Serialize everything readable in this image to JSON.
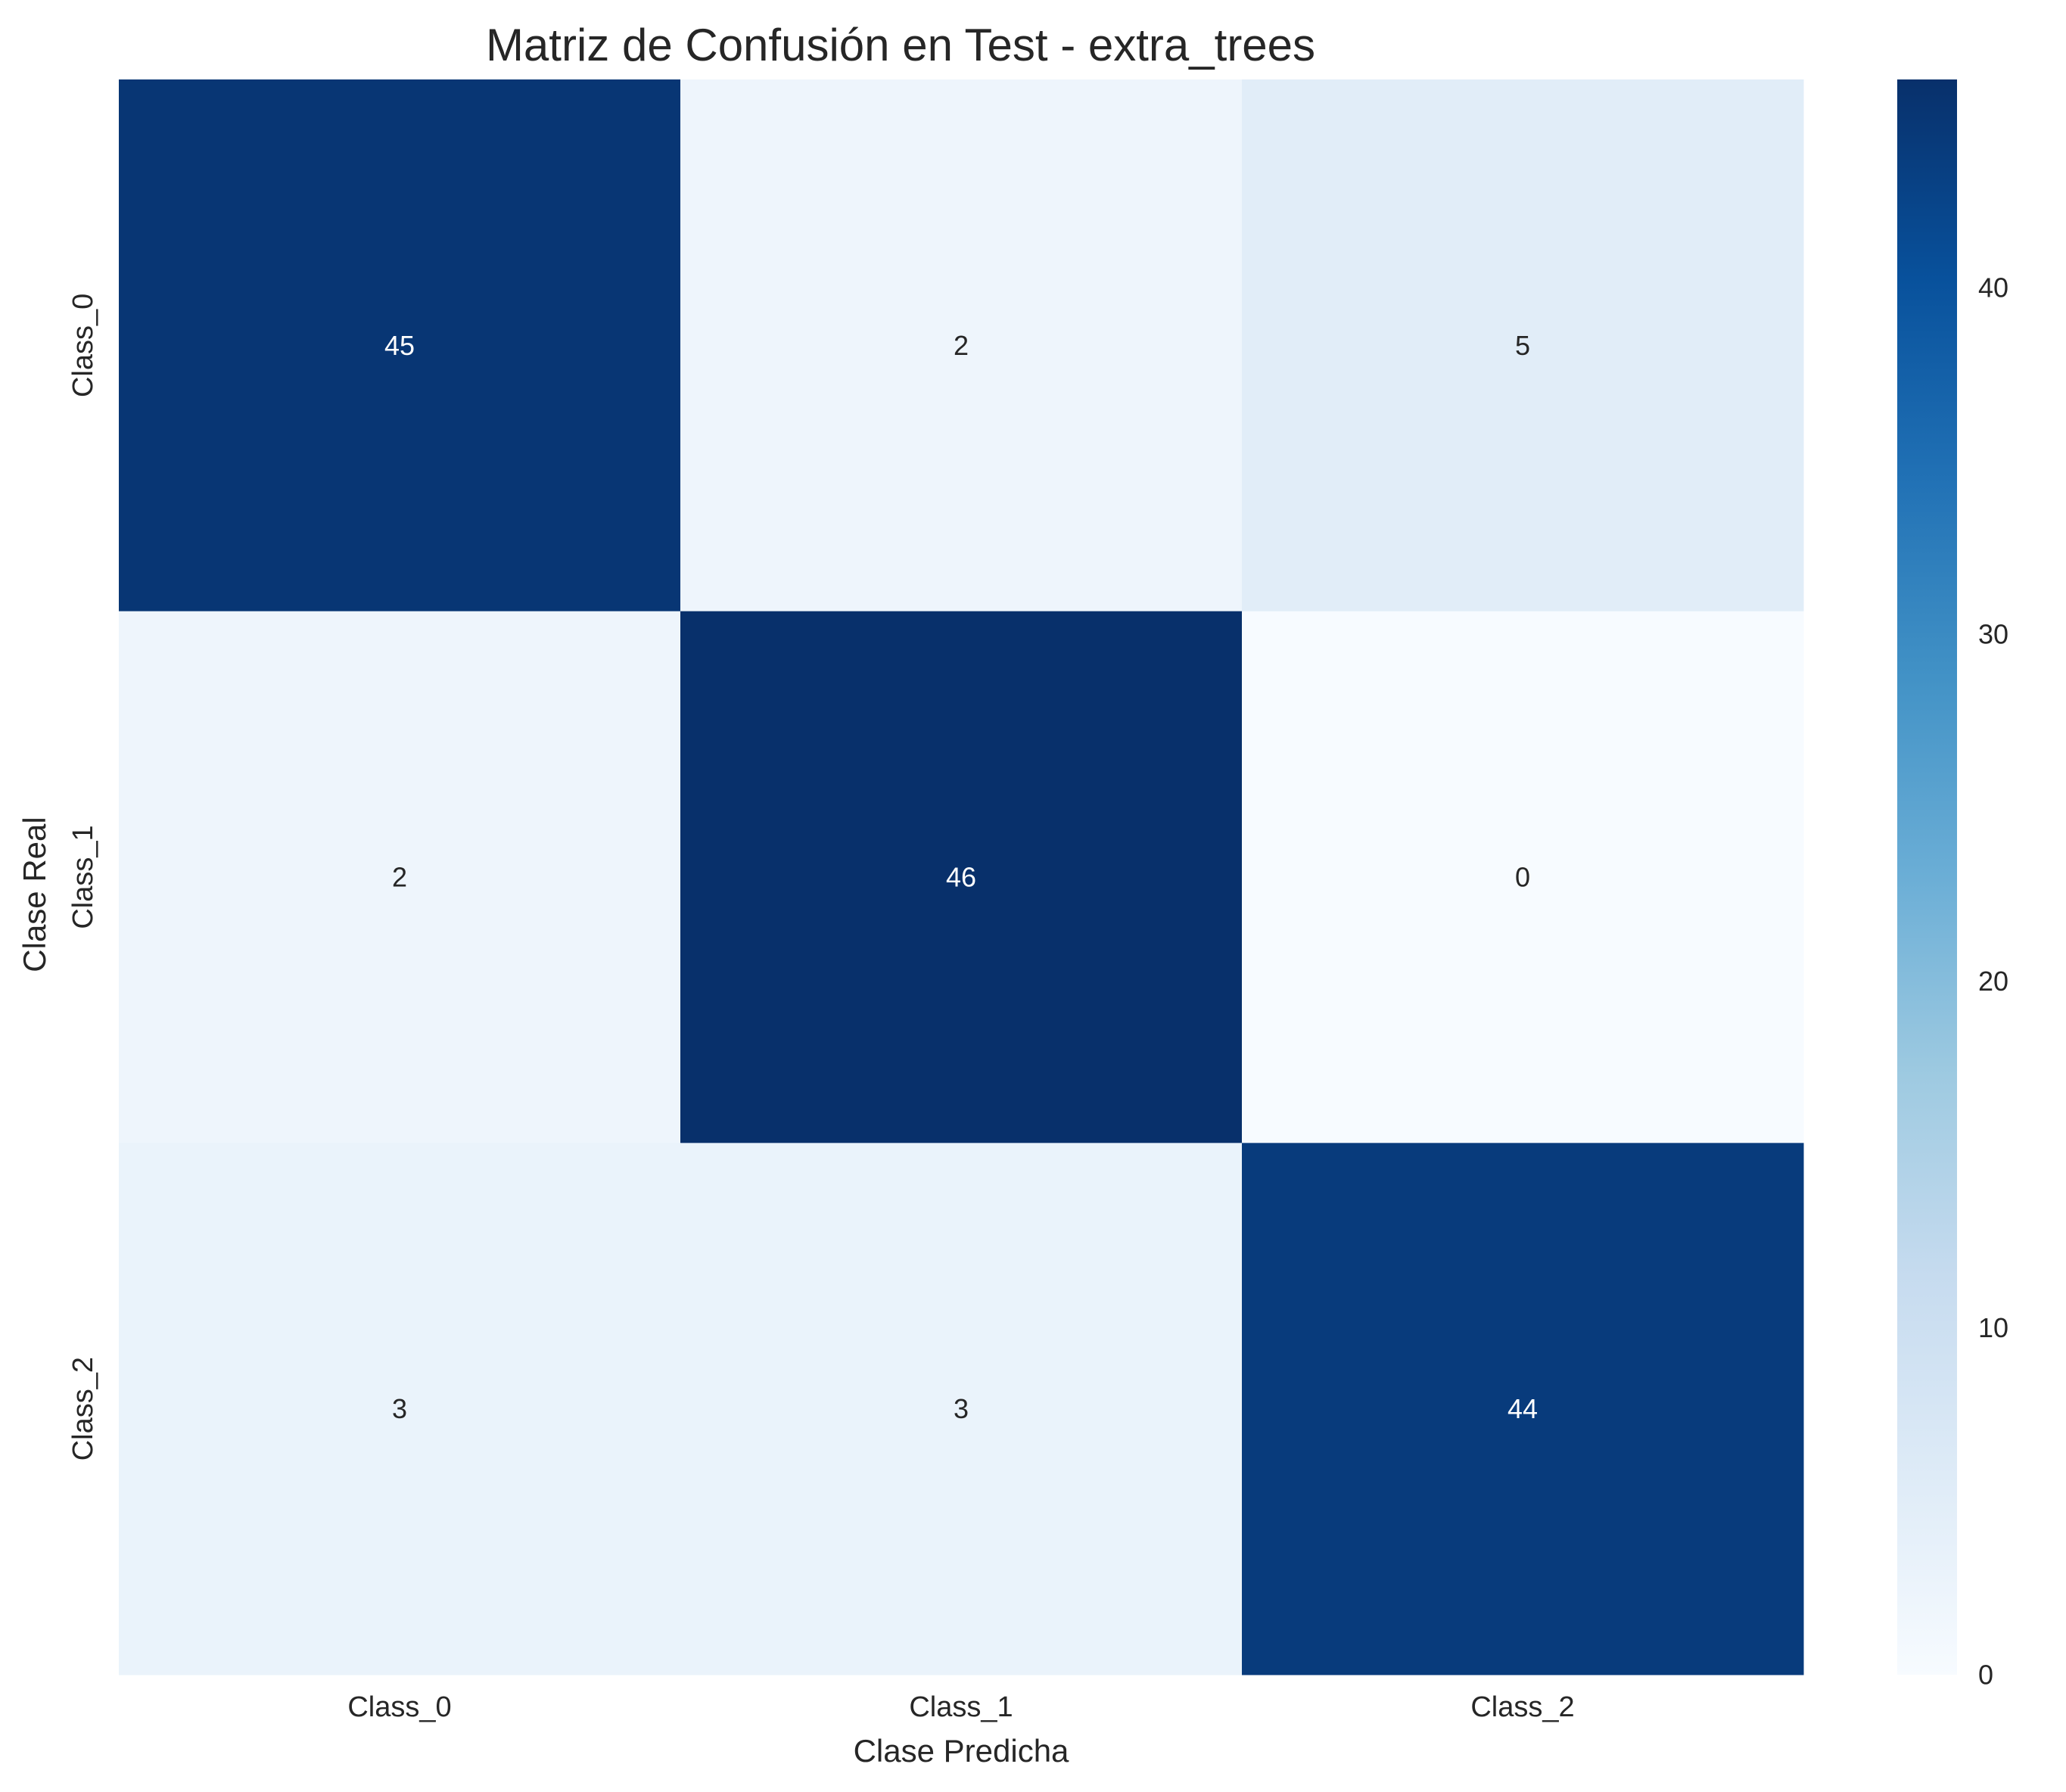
{
  "chart_data": {
    "type": "heatmap",
    "title": "Matriz de Confusión en Test - extra_trees",
    "xlabel": "Clase Predicha",
    "ylabel": "Clase Real",
    "x_categories": [
      "Class_0",
      "Class_1",
      "Class_2"
    ],
    "y_categories": [
      "Class_0",
      "Class_1",
      "Class_2"
    ],
    "values": [
      [
        45,
        2,
        5
      ],
      [
        2,
        46,
        0
      ],
      [
        3,
        3,
        44
      ]
    ],
    "colormap": "Blues",
    "colorbar": {
      "range": [
        0,
        46
      ],
      "ticks": [
        0,
        10,
        20,
        30,
        40
      ]
    },
    "annotation_colors": {
      "light": "#ffffff",
      "dark": "#262626"
    }
  }
}
